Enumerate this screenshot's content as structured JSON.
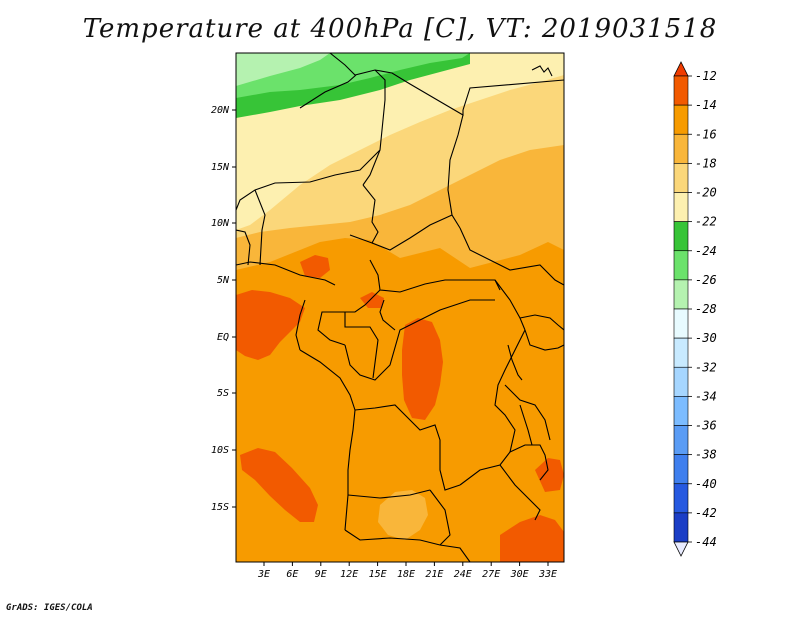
{
  "title": "Temperature at 400hPa [C], VT: 2019031518",
  "credit": "GrADS: IGES/COLA",
  "map": {
    "lat_labels": [
      "20N",
      "15N",
      "10N",
      "5N",
      "EQ",
      "5S",
      "10S",
      "15S"
    ],
    "lon_labels": [
      "3E",
      "6E",
      "9E",
      "12E",
      "15E",
      "18E",
      "21E",
      "24E",
      "27E",
      "30E",
      "33E"
    ],
    "colors": {
      "c_12_14": "#f25a00",
      "c_14_16": "#f79b00",
      "c_16_18": "#f9b63a",
      "c_18_20": "#fbd77a",
      "c_20_22": "#fdf0b0",
      "c_22_24": "#37c437",
      "c_24_26": "#6be26b",
      "c_26_28": "#b5f2b0"
    }
  },
  "colorbar": {
    "labels": [
      "-12",
      "-14",
      "-16",
      "-18",
      "-20",
      "-22",
      "-24",
      "-26",
      "-28",
      "-30",
      "-32",
      "-34",
      "-36",
      "-38",
      "-40",
      "-42",
      "-44"
    ],
    "colors": [
      "#f03c00",
      "#f25a00",
      "#f79b00",
      "#f9b63a",
      "#fbd77a",
      "#fdf0b0",
      "#37c437",
      "#6be26b",
      "#b5f2b0",
      "#e8fbff",
      "#c8eaff",
      "#a6d6ff",
      "#7cbcff",
      "#5a9cf5",
      "#3f7fee",
      "#2659e0",
      "#1b3ec6",
      "#0d1e8c",
      "#e9ecff"
    ]
  }
}
